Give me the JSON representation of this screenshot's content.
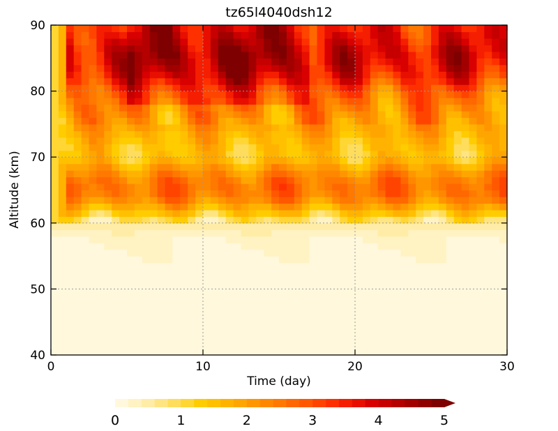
{
  "chart_data": {
    "type": "heatmap",
    "title": "tz65l4040dsh12",
    "xlabel": "Time (day)",
    "ylabel": "Altitude (km)",
    "xlim": [
      0,
      30
    ],
    "ylim": [
      40,
      90
    ],
    "x_ticks": [
      "0",
      "10",
      "20",
      "30"
    ],
    "y_ticks": [
      "40",
      "50",
      "60",
      "70",
      "80",
      "90"
    ],
    "grid": true,
    "colorbar": {
      "ticks": [
        "0",
        "1",
        "2",
        "3",
        "4",
        "5"
      ],
      "min": 0,
      "max": 5,
      "levels": 25,
      "extend": "max",
      "colors": [
        "#fff8dc",
        "#fff3c4",
        "#ffeca6",
        "#ffe582",
        "#ffdd5c",
        "#ffd633",
        "#ffcc00",
        "#ffc000",
        "#ffb300",
        "#ffa500",
        "#ff9600",
        "#ff8700",
        "#ff7800",
        "#ff6800",
        "#ff5800",
        "#ff4400",
        "#ff3000",
        "#f51e00",
        "#e80f00",
        "#d80000",
        "#c60000",
        "#b40000",
        "#a20000",
        "#900000",
        "#7f0000"
      ]
    },
    "profile": {
      "altitude_km": [
        40,
        50,
        55,
        58,
        60,
        62,
        64,
        66,
        68,
        70,
        72,
        75,
        78,
        80,
        82,
        84,
        86,
        88,
        90
      ],
      "value": [
        0.0,
        0.05,
        0.15,
        0.25,
        0.6,
        1.6,
        2.5,
        2.6,
        2.1,
        1.4,
        1.5,
        2.0,
        2.4,
        2.7,
        3.4,
        3.8,
        3.9,
        3.6,
        3.4
      ]
    },
    "series": []
  }
}
